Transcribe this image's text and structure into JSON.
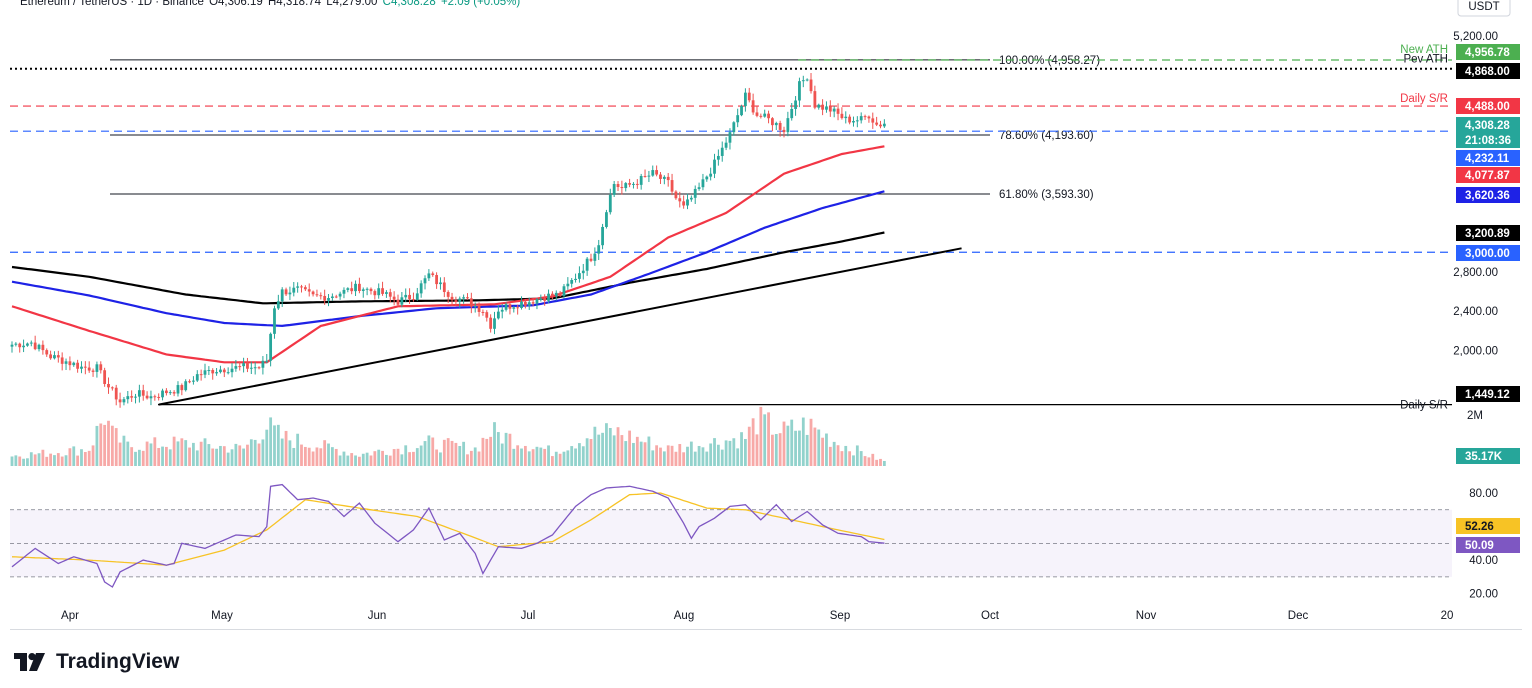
{
  "header": {
    "symbol": "Ethereum / TetherUS · 1D · Binance",
    "open": "O4,306.19",
    "high": "H4,318.74",
    "low": "L4,279.00",
    "close": "C4,308.28",
    "change": "+2.09 (+0.05%)"
  },
  "currency_badge": "USDT",
  "brand": "TradingView",
  "colors": {
    "bull": "#26a69a",
    "bear": "#ef5350",
    "ema50": "#f23645",
    "ema100": "#1e22e6",
    "ema200": "#000000",
    "rsi": "#7e57c2",
    "rsi_ma": "#f7c325",
    "ath": "#4caf50",
    "sr_red": "#f23645",
    "sr_blue": "#2962ff"
  },
  "chart_data": {
    "type": "candlestick",
    "title": "Ethereum / TetherUS · 1D · Binance",
    "ylim": [
      1200,
      5350
    ],
    "y_axis_ticks": [
      "5,200.00",
      "2,800.00",
      "2,400.00",
      "2,000.00"
    ],
    "x_axis_ticks": [
      "Apr",
      "May",
      "Jun",
      "Jul",
      "Aug",
      "Sep",
      "Oct",
      "Nov",
      "Dec",
      "20"
    ],
    "fibonacci": [
      {
        "label": "100.00% (4,958.27)",
        "value": 4958.27
      },
      {
        "label": "78.60% (4,193.60)",
        "value": 4193.6
      },
      {
        "label": "61.80% (3,593.30)",
        "value": 3593.3
      }
    ],
    "horizontal_levels": [
      {
        "name": "New ATH",
        "value": 4956.78,
        "style": "dashed",
        "color": "#4caf50"
      },
      {
        "name": "Pev ATH",
        "value": 4868.0,
        "style": "dotted",
        "color": "#000000"
      },
      {
        "name": "Daily S/R",
        "value": 4488.0,
        "style": "dashed",
        "color": "#f23645"
      },
      {
        "name": "",
        "value": 4232.11,
        "style": "dashed",
        "color": "#2962ff"
      },
      {
        "name": "",
        "value": 3000.0,
        "style": "dashed",
        "color": "#2962ff"
      },
      {
        "name": "Daily S/R",
        "value": 1449.12,
        "style": "solid",
        "color": "#000000"
      }
    ],
    "price_labels": [
      {
        "text": "4,956.78",
        "value": 4956.78,
        "bg": "#4caf50",
        "fg": "#ffffff"
      },
      {
        "text": "4,868.00",
        "value": 4868.0,
        "bg": "#000000",
        "fg": "#ffffff"
      },
      {
        "text": "4,488.00",
        "value": 4488.0,
        "bg": "#f23645",
        "fg": "#ffffff"
      },
      {
        "text": "4,308.28",
        "value": 4308.28,
        "bg": "#26a69a",
        "fg": "#ffffff"
      },
      {
        "text": "21:08:36",
        "value": 4308.28,
        "bg": "#26a69a",
        "fg": "#ffffff"
      },
      {
        "text": "4,232.11",
        "value": 4232.11,
        "bg": "#2962ff",
        "fg": "#ffffff"
      },
      {
        "text": "4,077.87",
        "value": 4077.87,
        "bg": "#f23645",
        "fg": "#ffffff"
      },
      {
        "text": "3,620.36",
        "value": 3620.36,
        "bg": "#1e22e6",
        "fg": "#ffffff"
      },
      {
        "text": "3,200.89",
        "value": 3200.89,
        "bg": "#000000",
        "fg": "#ffffff"
      },
      {
        "text": "3,000.00",
        "value": 3000.0,
        "bg": "#2962ff",
        "fg": "#ffffff"
      },
      {
        "text": "1,449.12",
        "value": 1449.12,
        "bg": "#000000",
        "fg": "#ffffff"
      }
    ],
    "close_anchors": [
      [
        0,
        2060
      ],
      [
        5,
        2080
      ],
      [
        10,
        1940
      ],
      [
        14,
        1890
      ],
      [
        18,
        1830
      ],
      [
        22,
        1820
      ],
      [
        25,
        1630
      ],
      [
        28,
        1480
      ],
      [
        32,
        1560
      ],
      [
        36,
        1530
      ],
      [
        40,
        1580
      ],
      [
        44,
        1620
      ],
      [
        48,
        1750
      ],
      [
        52,
        1800
      ],
      [
        56,
        1820
      ],
      [
        60,
        1830
      ],
      [
        64,
        1830
      ],
      [
        66,
        1900
      ],
      [
        68,
        2450
      ],
      [
        70,
        2600
      ],
      [
        74,
        2620
      ],
      [
        78,
        2550
      ],
      [
        82,
        2550
      ],
      [
        86,
        2600
      ],
      [
        90,
        2650
      ],
      [
        92,
        2620
      ],
      [
        96,
        2580
      ],
      [
        100,
        2500
      ],
      [
        104,
        2560
      ],
      [
        108,
        2770
      ],
      [
        110,
        2700
      ],
      [
        114,
        2550
      ],
      [
        118,
        2500
      ],
      [
        122,
        2410
      ],
      [
        124,
        2260
      ],
      [
        126,
        2420
      ],
      [
        130,
        2470
      ],
      [
        134,
        2500
      ],
      [
        138,
        2550
      ],
      [
        142,
        2570
      ],
      [
        146,
        2750
      ],
      [
        150,
        2950
      ],
      [
        152,
        3100
      ],
      [
        154,
        3450
      ],
      [
        156,
        3700
      ],
      [
        158,
        3650
      ],
      [
        162,
        3720
      ],
      [
        166,
        3800
      ],
      [
        170,
        3700
      ],
      [
        172,
        3550
      ],
      [
        174,
        3450
      ],
      [
        178,
        3650
      ],
      [
        182,
        3900
      ],
      [
        186,
        4200
      ],
      [
        190,
        4590
      ],
      [
        193,
        4400
      ],
      [
        196,
        4350
      ],
      [
        200,
        4250
      ],
      [
        204,
        4700
      ],
      [
        206,
        4800
      ],
      [
        208,
        4500
      ],
      [
        212,
        4450
      ],
      [
        216,
        4350
      ],
      [
        220,
        4350
      ],
      [
        222,
        4400
      ],
      [
        224,
        4300
      ],
      [
        226,
        4308
      ]
    ],
    "ema50_anchors": [
      [
        0,
        2450
      ],
      [
        20,
        2200
      ],
      [
        40,
        1960
      ],
      [
        55,
        1880
      ],
      [
        66,
        1880
      ],
      [
        80,
        2250
      ],
      [
        100,
        2450
      ],
      [
        125,
        2470
      ],
      [
        140,
        2550
      ],
      [
        155,
        2750
      ],
      [
        170,
        3150
      ],
      [
        185,
        3400
      ],
      [
        200,
        3800
      ],
      [
        215,
        4000
      ],
      [
        226,
        4077.87
      ]
    ],
    "ema100_anchors": [
      [
        0,
        2700
      ],
      [
        20,
        2560
      ],
      [
        40,
        2380
      ],
      [
        55,
        2280
      ],
      [
        70,
        2250
      ],
      [
        90,
        2350
      ],
      [
        110,
        2430
      ],
      [
        135,
        2460
      ],
      [
        150,
        2570
      ],
      [
        165,
        2780
      ],
      [
        180,
        3000
      ],
      [
        195,
        3250
      ],
      [
        210,
        3450
      ],
      [
        226,
        3620.36
      ]
    ],
    "ema200_anchors": [
      [
        0,
        2850
      ],
      [
        20,
        2750
      ],
      [
        45,
        2570
      ],
      [
        65,
        2480
      ],
      [
        90,
        2500
      ],
      [
        120,
        2510
      ],
      [
        140,
        2530
      ],
      [
        160,
        2690
      ],
      [
        180,
        2830
      ],
      [
        200,
        3000
      ],
      [
        215,
        3110
      ],
      [
        226,
        3200.89
      ]
    ],
    "trendline": {
      "from": [
        38,
        1449
      ],
      "to": [
        246,
        3040
      ]
    },
    "volume": {
      "axis_tick": "2M",
      "last_label": "35.17K",
      "anchors": [
        [
          0,
          0.18
        ],
        [
          8,
          0.22
        ],
        [
          20,
          0.3
        ],
        [
          24,
          0.9
        ],
        [
          26,
          0.55
        ],
        [
          30,
          0.35
        ],
        [
          44,
          0.4
        ],
        [
          60,
          0.3
        ],
        [
          66,
          0.7
        ],
        [
          70,
          0.5
        ],
        [
          90,
          0.2
        ],
        [
          108,
          0.4
        ],
        [
          120,
          0.3
        ],
        [
          124,
          0.6
        ],
        [
          140,
          0.25
        ],
        [
          150,
          0.55
        ],
        [
          156,
          0.6
        ],
        [
          170,
          0.3
        ],
        [
          190,
          0.5
        ],
        [
          193,
          0.8
        ],
        [
          200,
          0.6
        ],
        [
          206,
          0.72
        ],
        [
          214,
          0.4
        ],
        [
          226,
          0.08
        ]
      ]
    },
    "rsi": {
      "ylim": [
        20,
        90
      ],
      "ticks": [
        "80.00",
        "40.00",
        "20.00"
      ],
      "bands": [
        30,
        50,
        70
      ],
      "rsi_value": "50.09",
      "ma_value": "52.26",
      "rsi_anchors": [
        [
          0,
          36
        ],
        [
          6,
          47
        ],
        [
          12,
          38
        ],
        [
          16,
          42
        ],
        [
          22,
          38
        ],
        [
          24,
          27
        ],
        [
          26,
          24
        ],
        [
          28,
          33
        ],
        [
          34,
          40
        ],
        [
          40,
          37
        ],
        [
          42,
          38
        ],
        [
          44,
          50
        ],
        [
          50,
          47
        ],
        [
          58,
          55
        ],
        [
          64,
          54
        ],
        [
          66,
          60
        ],
        [
          67,
          84
        ],
        [
          70,
          85
        ],
        [
          74,
          76
        ],
        [
          78,
          77
        ],
        [
          82,
          75
        ],
        [
          86,
          66
        ],
        [
          90,
          74
        ],
        [
          94,
          62
        ],
        [
          100,
          51
        ],
        [
          104,
          58
        ],
        [
          108,
          71
        ],
        [
          112,
          52
        ],
        [
          116,
          56
        ],
        [
          120,
          44
        ],
        [
          122,
          32
        ],
        [
          124,
          40
        ],
        [
          126,
          48
        ],
        [
          132,
          47
        ],
        [
          136,
          50
        ],
        [
          140,
          55
        ],
        [
          146,
          72
        ],
        [
          150,
          79
        ],
        [
          154,
          83
        ],
        [
          160,
          84
        ],
        [
          166,
          81
        ],
        [
          170,
          77
        ],
        [
          174,
          62
        ],
        [
          176,
          53
        ],
        [
          178,
          60
        ],
        [
          182,
          65
        ],
        [
          186,
          72
        ],
        [
          190,
          73
        ],
        [
          194,
          64
        ],
        [
          198,
          73
        ],
        [
          202,
          63
        ],
        [
          206,
          69
        ],
        [
          210,
          61
        ],
        [
          214,
          56
        ],
        [
          220,
          54
        ],
        [
          222,
          51
        ],
        [
          226,
          50.09
        ]
      ],
      "ma_anchors": [
        [
          0,
          42
        ],
        [
          20,
          40
        ],
        [
          40,
          37
        ],
        [
          55,
          46
        ],
        [
          66,
          58
        ],
        [
          76,
          76
        ],
        [
          90,
          71
        ],
        [
          105,
          66
        ],
        [
          118,
          55
        ],
        [
          126,
          48
        ],
        [
          140,
          51
        ],
        [
          150,
          64
        ],
        [
          160,
          79
        ],
        [
          168,
          80
        ],
        [
          180,
          71
        ],
        [
          190,
          70
        ],
        [
          200,
          65
        ],
        [
          214,
          58
        ],
        [
          226,
          52.26
        ]
      ]
    }
  }
}
